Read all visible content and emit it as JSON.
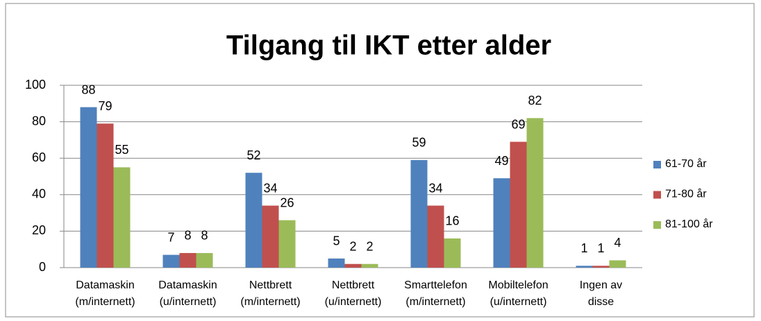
{
  "chart_data": {
    "type": "bar",
    "title": "Tilgang til IKT etter alder",
    "categories": [
      "Datamaskin\n(m/internett)",
      "Datamaskin\n(u/internett)",
      "Nettbrett\n(m/internett)",
      "Nettbrett\n(u/internett)",
      "Smarttelefon\n(m/internett)",
      "Mobiltelefon\n(u/internett)",
      "Ingen av\ndisse"
    ],
    "series": [
      {
        "name": "61-70 år",
        "color": "#4f81bd",
        "values": [
          88,
          7,
          52,
          5,
          59,
          49,
          1
        ]
      },
      {
        "name": "71-80 år",
        "color": "#c0504d",
        "values": [
          79,
          8,
          34,
          2,
          34,
          69,
          1
        ]
      },
      {
        "name": "81-100 år",
        "color": "#9bbb59",
        "values": [
          55,
          8,
          26,
          2,
          16,
          82,
          4
        ]
      }
    ],
    "ylim": [
      0,
      100
    ],
    "yticks": [
      0,
      20,
      40,
      60,
      80,
      100
    ],
    "grid": true,
    "legend": "right"
  }
}
